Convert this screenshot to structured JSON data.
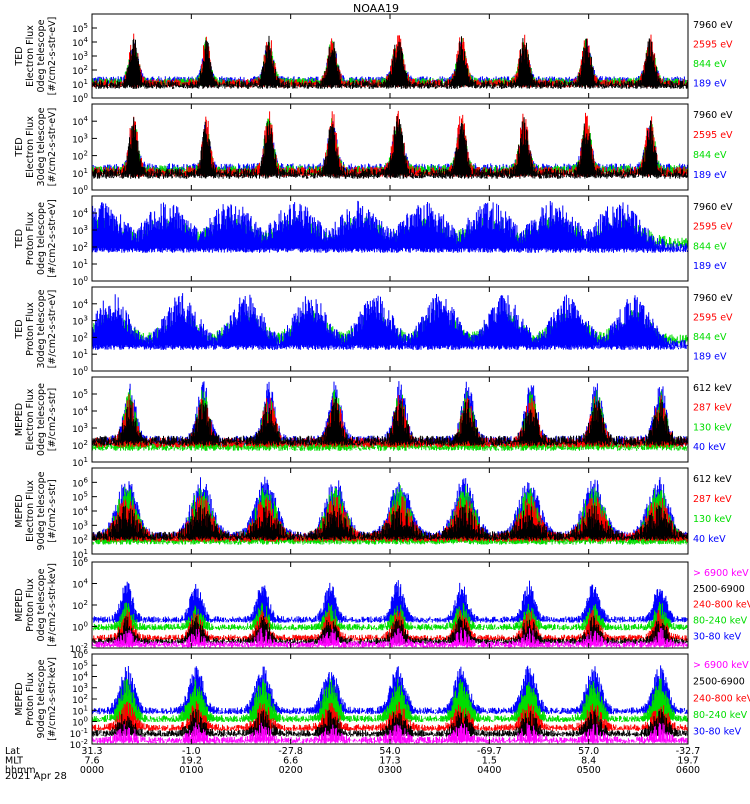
{
  "title": "NOAA19",
  "date": "2021 Apr 28",
  "colors": {
    "black": "#000000",
    "red": "#ff0000",
    "green": "#00dd00",
    "blue": "#0000ff",
    "magenta": "#ff00ff"
  },
  "x_axis": {
    "rows": [
      {
        "label": "Lat",
        "values": [
          "31.3",
          "-1.0",
          "-27.8",
          "54.0",
          "-69.7",
          "57.0",
          "-32.7"
        ]
      },
      {
        "label": "MLT",
        "values": [
          "7.6",
          "19.2",
          "6.6",
          "17.3",
          "1.5",
          "8.4",
          "19.7"
        ]
      },
      {
        "label": "hhmm",
        "values": [
          "0000",
          "0100",
          "0200",
          "0300",
          "0400",
          "0500",
          "0600"
        ]
      }
    ]
  },
  "chart_data": [
    {
      "type": "line",
      "ylabel": [
        "TED",
        "Electron Flux",
        "0deg telescope",
        "[#/cm2-s-str-eV]"
      ],
      "ylim": [
        1,
        1000000
      ],
      "yscale": "log",
      "ticks": [
        {
          "base": "10",
          "exp": "0"
        },
        {
          "base": "10",
          "exp": "1"
        },
        {
          "base": "10",
          "exp": "2"
        },
        {
          "base": "10",
          "exp": "3"
        },
        {
          "base": "10",
          "exp": "4"
        },
        {
          "base": "10",
          "exp": "5"
        }
      ],
      "legend": [
        {
          "label": "7960 eV",
          "color": "black"
        },
        {
          "label": "2595 eV",
          "color": "red"
        },
        {
          "label": "844 eV",
          "color": "green"
        },
        {
          "label": "189 eV",
          "color": "blue"
        }
      ],
      "series": [
        {
          "color": "blue",
          "level": 1.3,
          "peak": 3.3
        },
        {
          "color": "green",
          "level": 1.2,
          "peak": 3.5
        },
        {
          "color": "red",
          "level": 1.1,
          "peak": 3.9
        },
        {
          "color": "black",
          "level": 1.0,
          "peak": 3.6
        }
      ],
      "passes": [
        [
          0.42,
          0.06
        ],
        [
          1.15,
          0.05
        ],
        [
          1.78,
          0.06
        ],
        [
          2.42,
          0.06
        ],
        [
          3.08,
          0.07
        ],
        [
          3.72,
          0.06
        ],
        [
          4.35,
          0.06
        ],
        [
          4.98,
          0.06
        ],
        [
          5.62,
          0.06
        ]
      ]
    },
    {
      "type": "line",
      "ylabel": [
        "TED",
        "Electron Flux",
        "30deg telescope",
        "[#/cm2-s-str-eV]"
      ],
      "ylim": [
        1,
        100000
      ],
      "yscale": "log",
      "ticks": [
        {
          "base": "10",
          "exp": "0"
        },
        {
          "base": "10",
          "exp": "1"
        },
        {
          "base": "10",
          "exp": "2"
        },
        {
          "base": "10",
          "exp": "3"
        },
        {
          "base": "10",
          "exp": "4"
        }
      ],
      "legend": [
        {
          "label": "7960 eV",
          "color": "black"
        },
        {
          "label": "2595 eV",
          "color": "red"
        },
        {
          "label": "844 eV",
          "color": "green"
        },
        {
          "label": "189 eV",
          "color": "blue"
        }
      ],
      "series": [
        {
          "color": "blue",
          "level": 1.3,
          "peak": 3.2
        },
        {
          "color": "green",
          "level": 1.2,
          "peak": 3.4
        },
        {
          "color": "red",
          "level": 1.1,
          "peak": 3.8
        },
        {
          "color": "black",
          "level": 1.0,
          "peak": 3.5
        }
      ],
      "passes": [
        [
          0.42,
          0.06
        ],
        [
          1.15,
          0.05
        ],
        [
          1.78,
          0.06
        ],
        [
          2.42,
          0.06
        ],
        [
          3.08,
          0.07
        ],
        [
          3.72,
          0.06
        ],
        [
          4.35,
          0.06
        ],
        [
          4.98,
          0.06
        ],
        [
          5.62,
          0.06
        ]
      ]
    },
    {
      "type": "line",
      "ylabel": [
        "TED",
        "Proton Flux",
        "0deg telescope",
        "[#/cm2-s-str-eV]"
      ],
      "ylim": [
        1,
        100000
      ],
      "yscale": "log",
      "ticks": [
        {
          "base": "10",
          "exp": "0"
        },
        {
          "base": "10",
          "exp": "1"
        },
        {
          "base": "10",
          "exp": "2"
        },
        {
          "base": "10",
          "exp": "3"
        },
        {
          "base": "10",
          "exp": "4"
        }
      ],
      "legend": [
        {
          "label": "7960 eV",
          "color": "black"
        },
        {
          "label": "2595 eV",
          "color": "red"
        },
        {
          "label": "844 eV",
          "color": "green"
        },
        {
          "label": "189 eV",
          "color": "blue"
        }
      ],
      "series": [
        {
          "color": "green",
          "level": 2.3,
          "peak": 3.0
        },
        {
          "color": "blue",
          "level": 2.0,
          "peak": 3.9
        }
      ],
      "passes": [
        [
          0.1,
          0.3
        ],
        [
          0.75,
          0.3
        ],
        [
          1.4,
          0.3
        ],
        [
          2.05,
          0.3
        ],
        [
          2.7,
          0.3
        ],
        [
          3.35,
          0.3
        ],
        [
          4.0,
          0.3
        ],
        [
          4.65,
          0.3
        ],
        [
          5.3,
          0.3
        ]
      ]
    },
    {
      "type": "line",
      "ylabel": [
        "TED",
        "Proton Flux",
        "30deg telescope",
        "[#/cm2-s-str-eV]"
      ],
      "ylim": [
        1,
        100000
      ],
      "yscale": "log",
      "ticks": [
        {
          "base": "10",
          "exp": "0"
        },
        {
          "base": "10",
          "exp": "1"
        },
        {
          "base": "10",
          "exp": "2"
        },
        {
          "base": "10",
          "exp": "3"
        },
        {
          "base": "10",
          "exp": "4"
        }
      ],
      "legend": [
        {
          "label": "7960 eV",
          "color": "black"
        },
        {
          "label": "2595 eV",
          "color": "red"
        },
        {
          "label": "844 eV",
          "color": "green"
        },
        {
          "label": "189 eV",
          "color": "blue"
        }
      ],
      "series": [
        {
          "color": "green",
          "level": 1.9,
          "peak": 2.8
        },
        {
          "color": "blue",
          "level": 1.6,
          "peak": 3.8
        }
      ],
      "passes": [
        [
          0.2,
          0.22
        ],
        [
          0.9,
          0.22
        ],
        [
          1.55,
          0.22
        ],
        [
          2.2,
          0.22
        ],
        [
          2.85,
          0.22
        ],
        [
          3.5,
          0.22
        ],
        [
          4.15,
          0.22
        ],
        [
          4.8,
          0.22
        ],
        [
          5.45,
          0.22
        ]
      ]
    },
    {
      "type": "line",
      "ylabel": [
        "MEPED",
        "Electron Flux",
        "0deg telescope",
        "[#/cm2-s-str]"
      ],
      "ylim": [
        10,
        1000000
      ],
      "yscale": "log",
      "ticks": [
        {
          "base": "10",
          "exp": "1"
        },
        {
          "base": "10",
          "exp": "2"
        },
        {
          "base": "10",
          "exp": "3"
        },
        {
          "base": "10",
          "exp": "4"
        },
        {
          "base": "10",
          "exp": "5"
        }
      ],
      "legend": [
        {
          "label": "612 keV",
          "color": "black"
        },
        {
          "label": "287 keV",
          "color": "red"
        },
        {
          "label": "130 keV",
          "color": "green"
        },
        {
          "label": "40 keV",
          "color": "blue"
        }
      ],
      "series": [
        {
          "color": "blue",
          "level": 2.3,
          "peak": 5.0
        },
        {
          "color": "green",
          "level": 2.0,
          "peak": 4.5
        },
        {
          "color": "red",
          "level": 2.2,
          "peak": 4.2
        },
        {
          "color": "black",
          "level": 2.3,
          "peak": 4.0
        }
      ],
      "passes": [
        [
          0.38,
          0.08
        ],
        [
          1.12,
          0.08
        ],
        [
          1.78,
          0.08
        ],
        [
          2.45,
          0.08
        ],
        [
          3.1,
          0.08
        ],
        [
          3.78,
          0.08
        ],
        [
          4.42,
          0.08
        ],
        [
          5.08,
          0.08
        ],
        [
          5.72,
          0.08
        ]
      ]
    },
    {
      "type": "line",
      "ylabel": [
        "MEPED",
        "Electron Flux",
        "90deg telescope",
        "[#/cm2-s-str]"
      ],
      "ylim": [
        10,
        10000000
      ],
      "yscale": "log",
      "ticks": [
        {
          "base": "10",
          "exp": "1"
        },
        {
          "base": "10",
          "exp": "2"
        },
        {
          "base": "10",
          "exp": "3"
        },
        {
          "base": "10",
          "exp": "4"
        },
        {
          "base": "10",
          "exp": "5"
        },
        {
          "base": "10",
          "exp": "6"
        }
      ],
      "legend": [
        {
          "label": "612 keV",
          "color": "black"
        },
        {
          "label": "287 keV",
          "color": "red"
        },
        {
          "label": "130 keV",
          "color": "green"
        },
        {
          "label": "40 keV",
          "color": "blue"
        }
      ],
      "series": [
        {
          "color": "blue",
          "level": 2.3,
          "peak": 5.6
        },
        {
          "color": "green",
          "level": 2.0,
          "peak": 5.0
        },
        {
          "color": "red",
          "level": 2.2,
          "peak": 4.3
        },
        {
          "color": "black",
          "level": 2.3,
          "peak": 3.6
        }
      ],
      "passes": [
        [
          0.35,
          0.14
        ],
        [
          1.1,
          0.14
        ],
        [
          1.75,
          0.14
        ],
        [
          2.45,
          0.14
        ],
        [
          3.1,
          0.14
        ],
        [
          3.75,
          0.14
        ],
        [
          4.4,
          0.14
        ],
        [
          5.05,
          0.14
        ],
        [
          5.7,
          0.14
        ]
      ]
    },
    {
      "type": "line",
      "ylabel": [
        "MEPED",
        "Proton Flux",
        "0deg telescope",
        "[#/cm2-s-str-keV]"
      ],
      "ylim": [
        0.01,
        1000000
      ],
      "yscale": "log",
      "ticks": [
        {
          "base": "10",
          "exp": "-2"
        },
        {
          "base": "10",
          "exp": "0"
        },
        {
          "base": "10",
          "exp": "2"
        },
        {
          "base": "10",
          "exp": "4"
        },
        {
          "base": "10",
          "exp": "6"
        }
      ],
      "legend": [
        {
          "label": "> 6900 keV",
          "color": "magenta"
        },
        {
          "label": "2500-6900",
          "color": "black"
        },
        {
          "label": "240-800 keV",
          "color": "red"
        },
        {
          "label": "80-240 keV",
          "color": "green"
        },
        {
          "label": "30-80 keV",
          "color": "blue"
        }
      ],
      "series": [
        {
          "color": "blue",
          "level": 0.7,
          "peak": 3.5
        },
        {
          "color": "green",
          "level": 0.0,
          "peak": 1.5
        },
        {
          "color": "red",
          "level": -1.0,
          "peak": 0.8
        },
        {
          "color": "black",
          "level": -1.3,
          "peak": 0.2
        },
        {
          "color": "magenta",
          "level": -1.6,
          "peak": -0.9
        }
      ],
      "passes": [
        [
          0.35,
          0.08
        ],
        [
          1.05,
          0.08
        ],
        [
          1.72,
          0.08
        ],
        [
          2.4,
          0.08
        ],
        [
          3.08,
          0.08
        ],
        [
          3.72,
          0.08
        ],
        [
          4.4,
          0.08
        ],
        [
          5.05,
          0.08
        ],
        [
          5.72,
          0.08
        ]
      ]
    },
    {
      "type": "line",
      "ylabel": [
        "MEPED",
        "Proton Flux",
        "90deg telescope",
        "[#/cm2-s-str-keV]"
      ],
      "ylim": [
        0.01,
        1000000
      ],
      "yscale": "log",
      "ticks": [
        {
          "base": "10",
          "exp": "-2"
        },
        {
          "base": "10",
          "exp": "-1"
        },
        {
          "base": "10",
          "exp": "0"
        },
        {
          "base": "10",
          "exp": "1"
        },
        {
          "base": "10",
          "exp": "2"
        },
        {
          "base": "10",
          "exp": "3"
        },
        {
          "base": "10",
          "exp": "4"
        },
        {
          "base": "10",
          "exp": "5"
        },
        {
          "base": "10",
          "exp": "6"
        }
      ],
      "legend": [
        {
          "label": "> 6900 keV",
          "color": "magenta"
        },
        {
          "label": "2500-6900",
          "color": "black"
        },
        {
          "label": "240-800 keV",
          "color": "red"
        },
        {
          "label": "80-240 keV",
          "color": "green"
        },
        {
          "label": "30-80 keV",
          "color": "blue"
        }
      ],
      "series": [
        {
          "color": "blue",
          "level": 1.0,
          "peak": 4.2
        },
        {
          "color": "green",
          "level": 0.3,
          "peak": 3.0
        },
        {
          "color": "red",
          "level": -0.5,
          "peak": 1.0
        },
        {
          "color": "black",
          "level": -1.0,
          "peak": 0.3
        },
        {
          "color": "magenta",
          "level": -1.6,
          "peak": -0.9
        }
      ],
      "passes": [
        [
          0.35,
          0.1
        ],
        [
          1.05,
          0.1
        ],
        [
          1.72,
          0.1
        ],
        [
          2.4,
          0.1
        ],
        [
          3.08,
          0.1
        ],
        [
          3.72,
          0.1
        ],
        [
          4.4,
          0.1
        ],
        [
          5.05,
          0.1
        ],
        [
          5.72,
          0.1
        ]
      ]
    }
  ]
}
